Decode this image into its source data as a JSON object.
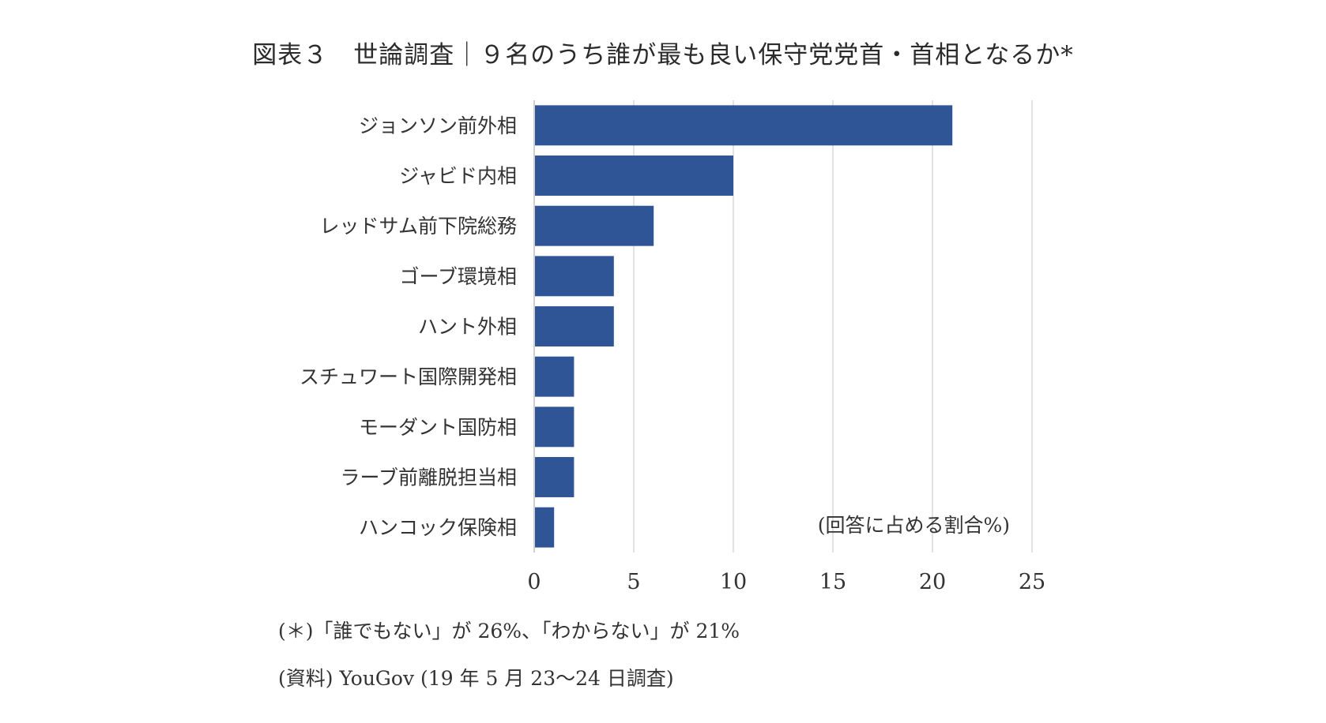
{
  "chart_data": {
    "type": "bar",
    "orientation": "horizontal",
    "title": "図表３　世論調査｜９名のうち誰が最も良い保守党党首・首相となるか*",
    "unit_label": "(回答に占める割合%)",
    "categories": [
      "ジョンソン前外相",
      "ジャビド内相",
      "レッドサム前下院総務",
      "ゴーブ環境相",
      "ハント外相",
      "スチュワート国際開発相",
      "モーダント国防相",
      "ラーブ前離脱担当相",
      "ハンコック保険相"
    ],
    "values": [
      21,
      10,
      6,
      4,
      4,
      2,
      2,
      2,
      1
    ],
    "xlim": [
      0,
      25
    ],
    "xticks": [
      "0",
      "5",
      "10",
      "15",
      "20",
      "25"
    ],
    "grid": "vertical",
    "bar_color": "#2f5597"
  },
  "notes": {
    "asterisk": "(＊)「誰でもない」が 26%、「わからない」が 21%",
    "source": "(資料) YouGov (19 年 5 月 23〜24 日調査)"
  }
}
